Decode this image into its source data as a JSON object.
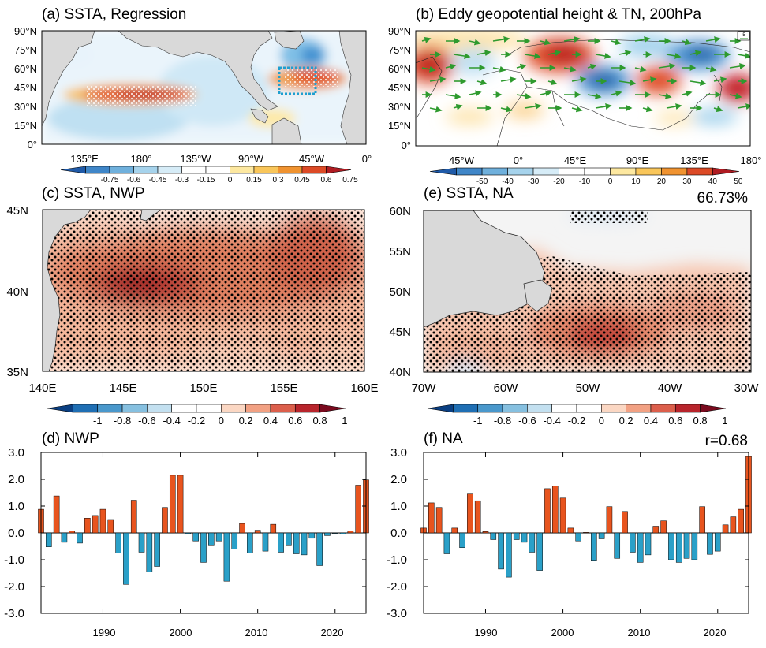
{
  "colors": {
    "ocean_white": "#ffffff",
    "land": "#d9d9d9",
    "positive_bar": "#e8541e",
    "negative_bar": "#2aa0c8",
    "vector": "#2e9a2e",
    "box": "#1e9fd0"
  },
  "chart_data": [
    {
      "id": "a",
      "type": "heatmap",
      "title": "(a) SSTA, Regression",
      "y_ticks": [
        "90°N",
        "75°N",
        "60°N",
        "45°N",
        "30°N",
        "15°N",
        "0°"
      ],
      "x_ticks": [
        "135°E",
        "180°",
        "135°W",
        "90°W",
        "45°W",
        "0°"
      ],
      "colorbar": [
        "-0.75",
        "-0.6",
        "-0.45",
        "-0.3",
        "-0.15",
        "0",
        "0.15",
        "0.3",
        "0.45",
        "0.6",
        "0.75"
      ]
    },
    {
      "id": "b",
      "type": "heatmap",
      "title": "(b) Eddy geopotential height & TN, 200hPa",
      "y_ticks": [
        "90°N",
        "75°N",
        "60°N",
        "45°N",
        "30°N",
        "15°N",
        "0°"
      ],
      "x_ticks": [
        "45°W",
        "0°",
        "45°E",
        "90°E",
        "135°E",
        "180°"
      ],
      "colorbar": [
        "-50",
        "-40",
        "-30",
        "-20",
        "-10",
        "0",
        "10",
        "20",
        "30",
        "40",
        "50"
      ],
      "ref_vector": "5"
    },
    {
      "id": "c",
      "type": "heatmap",
      "title": "(c) SSTA, NWP",
      "y_ticks": [
        "45N",
        "40N",
        "35N"
      ],
      "x_ticks": [
        "140E",
        "145E",
        "150E",
        "155E",
        "160E"
      ],
      "colorbar": [
        "-1",
        "-0.8",
        "-0.6",
        "-0.4",
        "-0.2",
        "0",
        "0.2",
        "0.4",
        "0.6",
        "0.8",
        "1"
      ]
    },
    {
      "id": "e",
      "type": "heatmap",
      "title": "(e) SSTA, NA",
      "annotation": "66.73%",
      "y_ticks": [
        "60N",
        "55N",
        "50N",
        "45N",
        "40N"
      ],
      "x_ticks": [
        "70W",
        "60W",
        "50W",
        "40W",
        "30W"
      ],
      "colorbar": [
        "-1",
        "-0.8",
        "-0.6",
        "-0.4",
        "-0.2",
        "0",
        "0.2",
        "0.4",
        "0.6",
        "0.8",
        "1"
      ]
    },
    {
      "id": "d",
      "type": "bar",
      "title": "(d) NWP",
      "xlim": [
        1982,
        2024
      ],
      "ylim": [
        -3,
        3
      ],
      "y_ticks": [
        "3.0",
        "2.0",
        "1.0",
        "0.0",
        "-1.0",
        "-2.0",
        "-3.0"
      ],
      "x_ticks": [
        "1990",
        "2000",
        "2010",
        "2020"
      ],
      "years": [
        1982,
        1983,
        1984,
        1985,
        1986,
        1987,
        1988,
        1989,
        1990,
        1991,
        1992,
        1993,
        1994,
        1995,
        1996,
        1997,
        1998,
        1999,
        2000,
        2001,
        2002,
        2003,
        2004,
        2005,
        2006,
        2007,
        2008,
        2009,
        2010,
        2011,
        2012,
        2013,
        2014,
        2015,
        2016,
        2017,
        2018,
        2019,
        2020,
        2021,
        2022,
        2023,
        2024
      ],
      "values": [
        0.88,
        -0.52,
        1.38,
        -0.35,
        0.08,
        -0.38,
        0.55,
        0.65,
        0.88,
        0.5,
        -0.75,
        -1.92,
        1.22,
        -0.72,
        -1.45,
        -1.25,
        0.95,
        2.15,
        2.15,
        -0.03,
        -0.3,
        -1.1,
        -0.45,
        -0.3,
        -1.8,
        -0.6,
        0.35,
        -0.75,
        0.1,
        -0.68,
        0.32,
        -0.72,
        -0.45,
        -0.78,
        -0.82,
        -0.2,
        -1.22,
        -0.1,
        -0.02,
        -0.05,
        0.08,
        1.78,
        1.98
      ]
    },
    {
      "id": "f",
      "type": "bar",
      "title": "(f) NA",
      "annotation": "r=0.68",
      "xlim": [
        1982,
        2024
      ],
      "ylim": [
        -3,
        3
      ],
      "y_ticks": [
        "3.0",
        "2.0",
        "1.0",
        "0.0",
        "-1.0",
        "-2.0",
        "-3.0"
      ],
      "x_ticks": [
        "1990",
        "2000",
        "2010",
        "2020"
      ],
      "years": [
        1982,
        1983,
        1984,
        1985,
        1986,
        1987,
        1988,
        1989,
        1990,
        1991,
        1992,
        1993,
        1994,
        1995,
        1996,
        1997,
        1998,
        1999,
        2000,
        2001,
        2002,
        2003,
        2004,
        2005,
        2006,
        2007,
        2008,
        2009,
        2010,
        2011,
        2012,
        2013,
        2014,
        2015,
        2016,
        2017,
        2018,
        2019,
        2020,
        2021,
        2022,
        2023,
        2024
      ],
      "values": [
        0.18,
        1.12,
        0.95,
        -0.78,
        0.18,
        -0.55,
        1.45,
        1.2,
        0.05,
        -0.25,
        -1.35,
        -1.65,
        -0.25,
        -0.35,
        -0.72,
        -1.4,
        1.65,
        1.75,
        1.3,
        0.18,
        -0.3,
        0.02,
        -1.05,
        -0.22,
        0.98,
        -0.95,
        0.8,
        -0.72,
        -1.1,
        -0.82,
        0.25,
        0.45,
        -1.0,
        -1.1,
        -0.95,
        -1.0,
        0.98,
        -0.8,
        -0.68,
        0.3,
        0.6,
        0.88,
        2.85
      ]
    }
  ]
}
